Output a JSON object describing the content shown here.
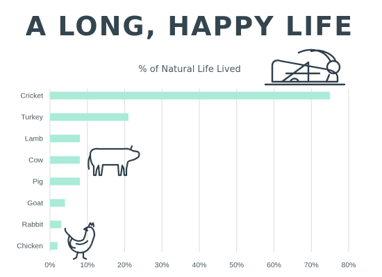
{
  "colors": {
    "bar": "#a9ead8",
    "title": "#34454f",
    "text": "#4a5a63",
    "grid": "#d7dde1",
    "icon": "#2f3f4a"
  },
  "icons": [
    "cricket-icon",
    "cow-icon",
    "chicken-icon"
  ],
  "chart_data": {
    "type": "bar",
    "orientation": "horizontal",
    "title": "A LONG, HAPPY LIFE",
    "subtitle": "% of Natural Life Lived",
    "xlabel": "",
    "ylabel": "",
    "categories": [
      "Cricket",
      "Turkey",
      "Lamb",
      "Cow",
      "Pig",
      "Goat",
      "Rabbit",
      "Chicken"
    ],
    "values": [
      75,
      21,
      8,
      8,
      8,
      4,
      3,
      2
    ],
    "xlim": [
      0,
      80
    ],
    "ticks": [
      "0%",
      "10%",
      "20%",
      "30%",
      "40%",
      "50%",
      "60%",
      "70%",
      "80%"
    ],
    "grid": true,
    "legend": "none"
  }
}
